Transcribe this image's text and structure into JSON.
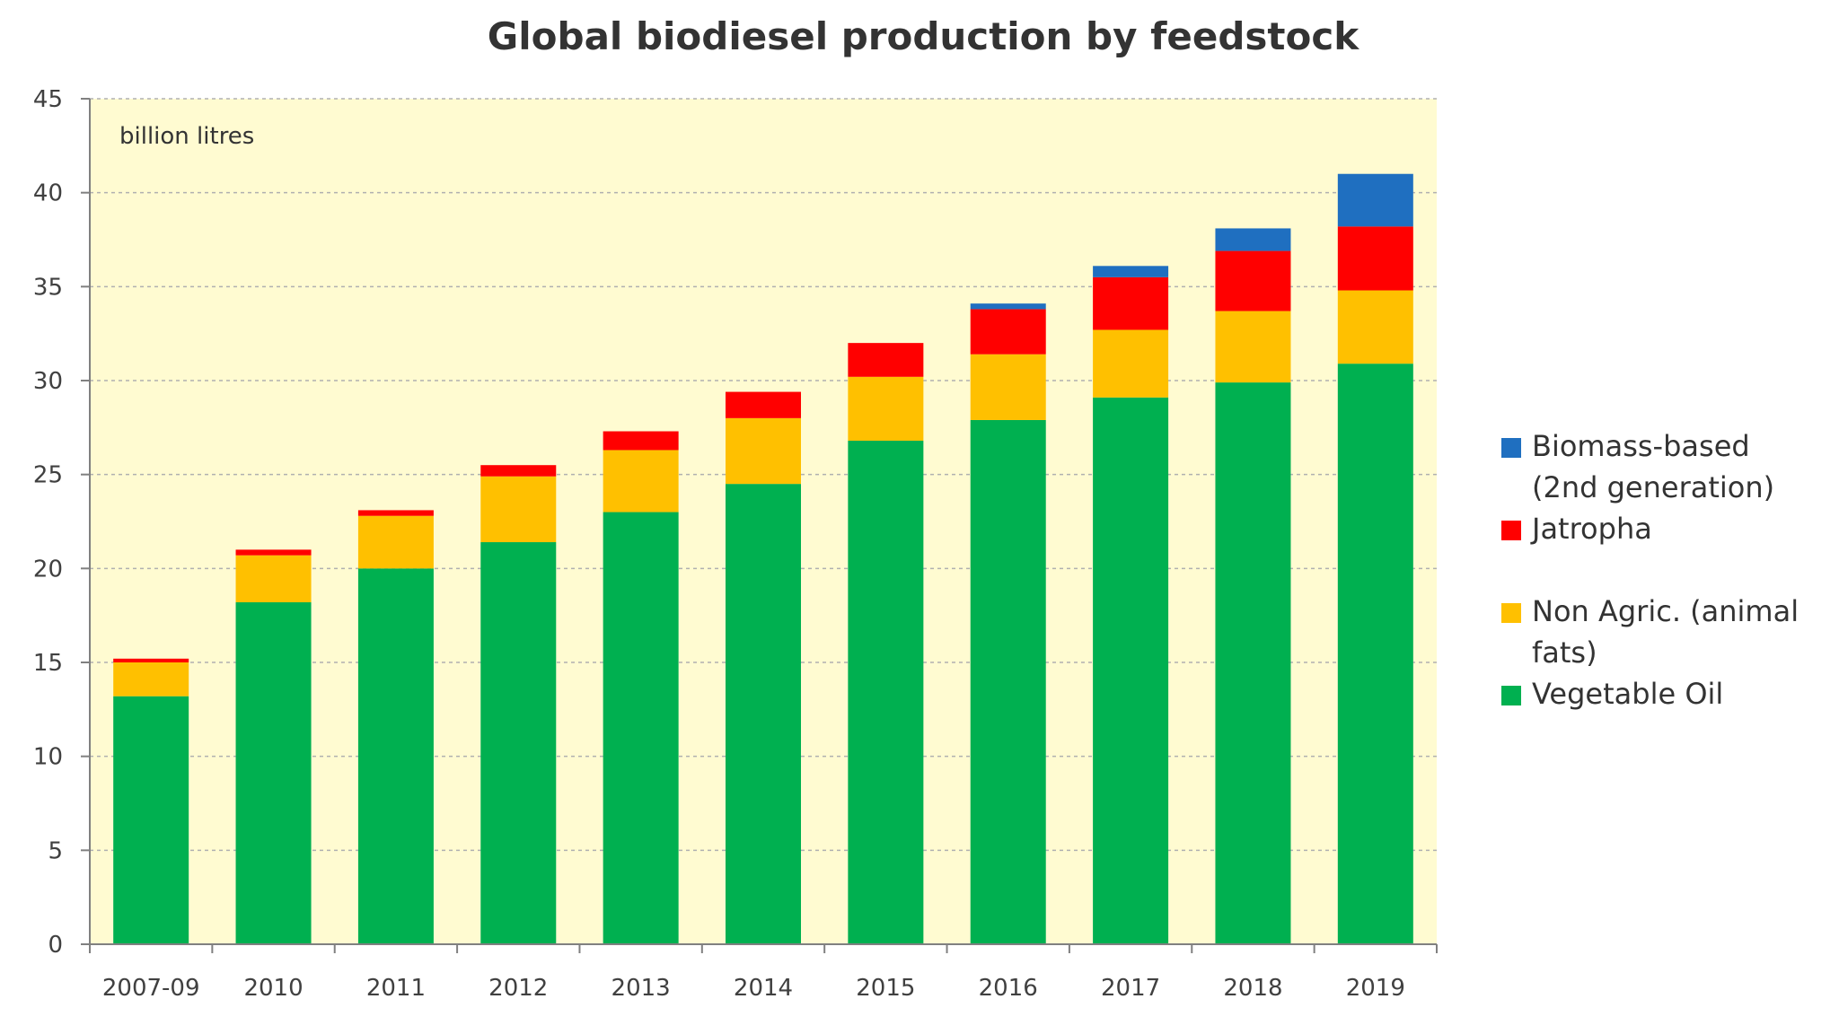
{
  "chart_data": {
    "type": "bar",
    "stacked": true,
    "title": "Global biodiesel production by feedstock",
    "unit_label": "billion litres",
    "xlabel": "",
    "ylabel": "",
    "ylim": [
      0,
      45
    ],
    "y_ticks": [
      0,
      5,
      10,
      15,
      20,
      25,
      30,
      35,
      40,
      45
    ],
    "grid": true,
    "legend_position": "right",
    "plot_background": "#fffbd1",
    "categories": [
      "2007-09",
      "2010",
      "2011",
      "2012",
      "2013",
      "2014",
      "2015",
      "2016",
      "2017",
      "2018",
      "2019"
    ],
    "series": [
      {
        "key": "vegetable_oil",
        "name": "Vegetable Oil",
        "color": "#00b050",
        "values": [
          13.2,
          18.2,
          20.0,
          21.4,
          23.0,
          24.5,
          26.8,
          27.9,
          29.1,
          29.9,
          30.9
        ]
      },
      {
        "key": "non_agric",
        "name": "Non Agric. (animal fats)",
        "color": "#ffc000",
        "values": [
          1.8,
          2.5,
          2.8,
          3.5,
          3.3,
          3.5,
          3.4,
          3.5,
          3.6,
          3.8,
          3.9
        ]
      },
      {
        "key": "jatropha",
        "name": "Jatropha",
        "color": "#ff0000",
        "values": [
          0.2,
          0.3,
          0.3,
          0.6,
          1.0,
          1.4,
          1.8,
          2.4,
          2.8,
          3.2,
          3.4
        ]
      },
      {
        "key": "biomass",
        "name": "Biomass-based (2nd generation)",
        "color": "#1f6fc0",
        "values": [
          0,
          0,
          0,
          0,
          0,
          0,
          0,
          0.3,
          0.6,
          1.2,
          2.8
        ]
      }
    ],
    "legend_order": [
      "biomass",
      "jatropha",
      "non_agric",
      "vegetable_oil"
    ],
    "legend_lines": {
      "biomass": [
        "Biomass-based",
        "(2nd generation)"
      ],
      "jatropha": [
        "Jatropha"
      ],
      "non_agric": [
        "Non Agric. (animal",
        "fats)"
      ],
      "vegetable_oil": [
        "Vegetable Oil"
      ]
    }
  }
}
